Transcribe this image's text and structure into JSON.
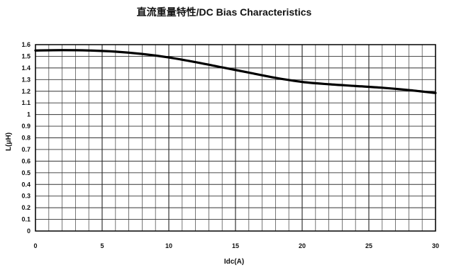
{
  "chart_data": {
    "type": "line",
    "title": "直流重量特性/DC Bias Characteristics",
    "xlabel": "Idc(A)",
    "ylabel": "L(μH)",
    "xlim": [
      0,
      30
    ],
    "ylim": [
      0,
      1.6
    ],
    "x_ticks": [
      "0",
      "5",
      "10",
      "15",
      "20",
      "25",
      "30"
    ],
    "y_ticks": [
      "0",
      "0.1",
      "0.2",
      "0.3",
      "0.4",
      "0.5",
      "0.6",
      "0.7",
      "0.8",
      "0.9",
      "1",
      "1.1",
      "1.2",
      "1.3",
      "1.4",
      "1.5",
      "1.6"
    ],
    "grid": true,
    "series": [
      {
        "x": [
          0,
          2,
          4,
          6,
          8,
          10,
          12,
          14,
          16,
          18,
          20,
          22,
          24,
          26,
          28,
          30
        ],
        "y": [
          1.55,
          1.553,
          1.55,
          1.54,
          1.52,
          1.49,
          1.45,
          1.405,
          1.36,
          1.315,
          1.28,
          1.26,
          1.245,
          1.23,
          1.21,
          1.185
        ]
      }
    ]
  }
}
